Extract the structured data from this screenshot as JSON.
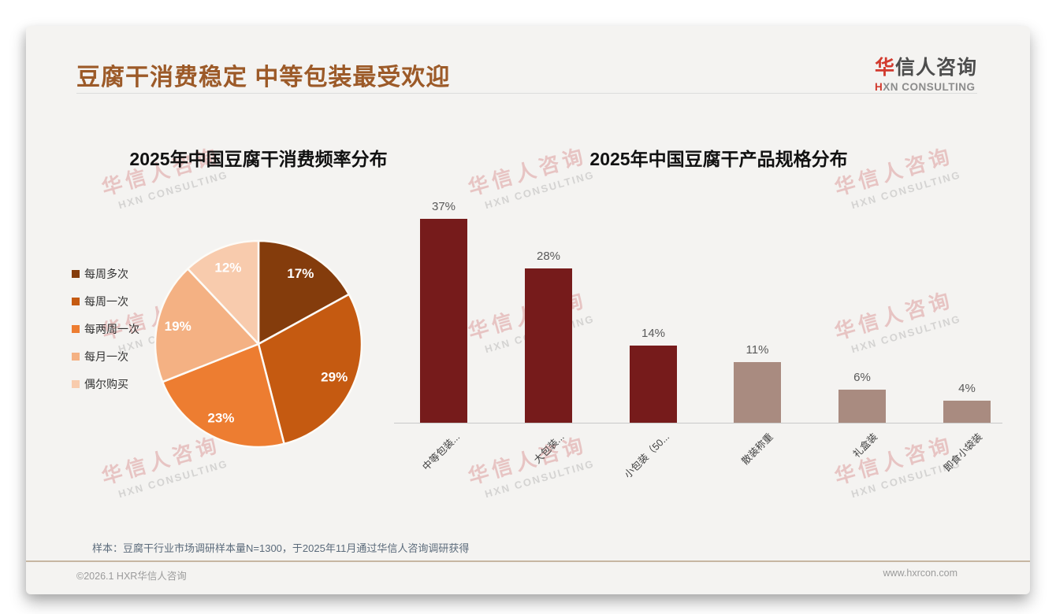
{
  "page": {
    "title": "豆腐干消费稳定 中等包装最受欢迎",
    "logo": {
      "cn_accent": "华",
      "cn_rest": "信人咨询",
      "en_accent": "H",
      "en_rest": "XN CONSULTING"
    },
    "watermark": {
      "cn": "华信人咨询",
      "en": "HXN CONSULTING"
    },
    "footnote": "样本：豆腐干行业市场调研样本量N=1300，于2025年11月通过华信人咨询调研获得",
    "copyright": "©2026.1 HXR华信人咨询",
    "website": "www.hxrcon.com"
  },
  "chart_data": [
    {
      "type": "pie",
      "title": "2025年中国豆腐干消费频率分布",
      "categories": [
        "每周多次",
        "每周一次",
        "每两周一次",
        "每月一次",
        "偶尔购买"
      ],
      "values": [
        17,
        29,
        23,
        19,
        12
      ],
      "unit": "%",
      "data_labels": [
        "17%",
        "29%",
        "23%",
        "19%",
        "12%"
      ],
      "colors": [
        "#843C0C",
        "#C55A11",
        "#ED7D31",
        "#F4B183",
        "#F8CBAD"
      ],
      "legend_position": "left",
      "start_angle_deg": 0,
      "direction": "clockwise"
    },
    {
      "type": "bar",
      "title": "2025年中国豆腐干产品规格分布",
      "categories": [
        "中等包装...",
        "大包装...",
        "小包装（50...",
        "散装称重",
        "礼盒装",
        "即食小袋装"
      ],
      "values": [
        37,
        28,
        14,
        11,
        6,
        4
      ],
      "unit": "%",
      "data_labels": [
        "37%",
        "28%",
        "14%",
        "11%",
        "6%",
        "4%"
      ],
      "bar_colors": [
        "#761B1B",
        "#761B1B",
        "#761B1B",
        "#A98B80",
        "#A98B80",
        "#A98B80"
      ],
      "ylim": [
        0,
        40
      ],
      "grid": false,
      "xlabel": "",
      "ylabel": "",
      "x_tick_rotation_deg": 45
    }
  ]
}
